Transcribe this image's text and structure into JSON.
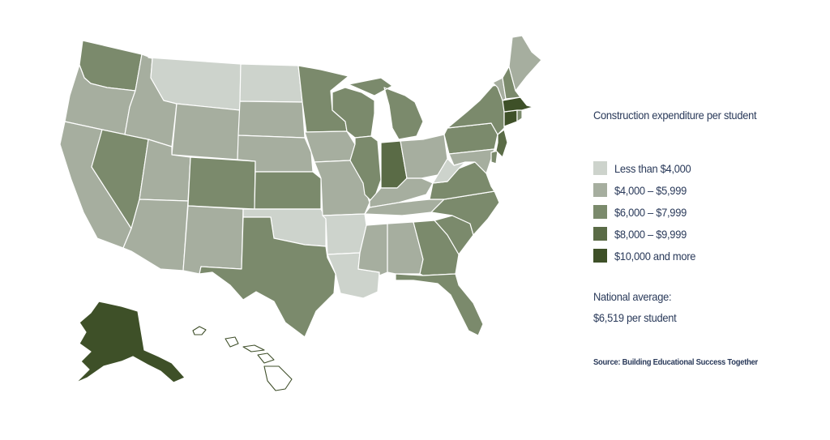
{
  "legend": {
    "title": "Construction expenditure per student",
    "items": [
      {
        "label": "Less than $4,000",
        "color": "#cdd3cc"
      },
      {
        "label": "$4,000 – $5,999",
        "color": "#a6ae9f"
      },
      {
        "label": "$6,000 – $7,999",
        "color": "#7b8a6c"
      },
      {
        "label": "$8,000 – $9,999",
        "color": "#5a6b46"
      },
      {
        "label": "$10,000 and more",
        "color": "#3e5028"
      }
    ]
  },
  "national_average": {
    "label": "National average:",
    "value": "$6,519 per student"
  },
  "source": "Source: Building Educational Success Together",
  "states": {
    "WA": 2,
    "OR": 1,
    "CA": 1,
    "NV": 2,
    "ID": 1,
    "MT": 0,
    "WY": 1,
    "UT": 1,
    "AZ": 1,
    "CO": 2,
    "NM": 1,
    "ND": 0,
    "SD": 1,
    "NE": 1,
    "KS": 2,
    "OK": 0,
    "TX": 2,
    "MN": 2,
    "IA": 1,
    "MO": 1,
    "AR": 0,
    "LA": 0,
    "WI": 2,
    "IL": 2,
    "MI": 2,
    "IN": 3,
    "OH": 1,
    "KY": 1,
    "TN": 1,
    "MS": 1,
    "AL": 1,
    "GA": 2,
    "FL": 2,
    "SC": 2,
    "NC": 2,
    "VA": 2,
    "WV": 0,
    "PA": 2,
    "NY": 2,
    "VT": 1,
    "NH": 2,
    "ME": 1,
    "MA": 4,
    "CT": 4,
    "RI": 2,
    "NJ": 3,
    "DE": 2,
    "MD": 1,
    "AK": 4,
    "HI": -1
  }
}
